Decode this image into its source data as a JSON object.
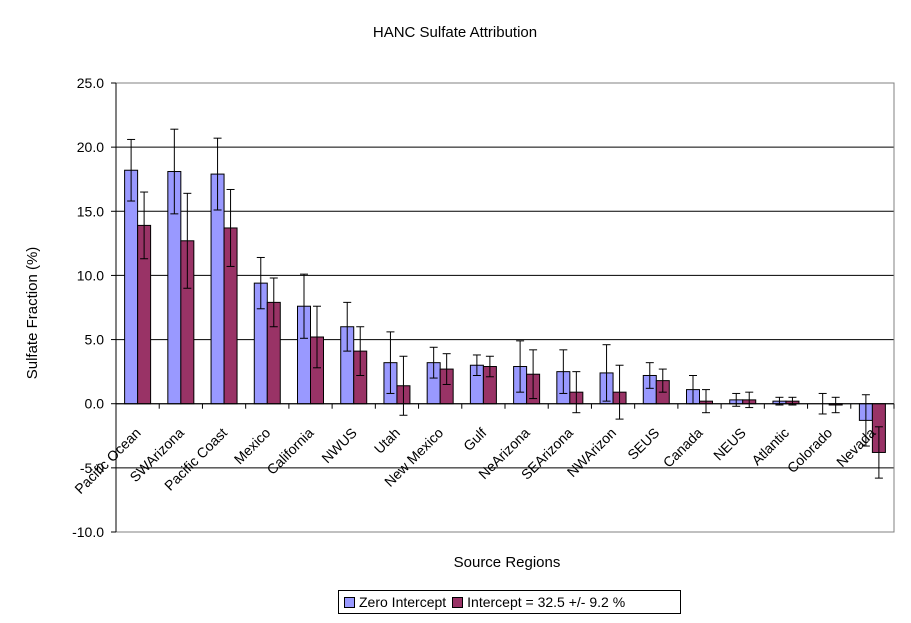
{
  "chart_data": {
    "type": "bar",
    "title": "HANC Sulfate Attribution",
    "xlabel": "Source Regions",
    "ylabel": "Sulfate Fraction (%)",
    "ylim": [
      -10,
      25
    ],
    "yticks": [
      "25.0",
      "20.0",
      "15.0",
      "10.0",
      "5.0",
      "0.0",
      "-5.0",
      "-10.0"
    ],
    "grid": true,
    "legend_position": "bottom",
    "categories": [
      "Pacific Ocean",
      "SWArizona",
      "Pacific Coast",
      "Mexico",
      "California",
      "NWUS",
      "Utah",
      "New Mexico",
      "Gulf",
      "NeArizona",
      "SEArizona",
      "NWArizon",
      "SEUS",
      "Canada",
      "NEUS",
      "Atlantic",
      "Colorado",
      "Nevada"
    ],
    "series": [
      {
        "name": "Zero Intercept",
        "color": "#9999ff",
        "values": [
          18.2,
          18.1,
          17.9,
          9.4,
          7.6,
          6.0,
          3.2,
          3.2,
          3.0,
          2.9,
          2.5,
          2.4,
          2.2,
          1.1,
          0.3,
          0.2,
          0.0,
          -1.3
        ],
        "errors": [
          2.4,
          3.3,
          2.8,
          2.0,
          2.5,
          1.9,
          2.4,
          1.2,
          0.8,
          2.0,
          1.7,
          2.2,
          1.0,
          1.1,
          0.5,
          0.3,
          0.8,
          2.0
        ]
      },
      {
        "name": "Intercept = 32.5 +/- 9.2 %",
        "color": "#993366",
        "values": [
          13.9,
          12.7,
          13.7,
          7.9,
          5.2,
          4.1,
          1.4,
          2.7,
          2.9,
          2.3,
          0.9,
          0.9,
          1.8,
          0.2,
          0.3,
          0.2,
          -0.1,
          -3.8
        ],
        "errors": [
          2.6,
          3.7,
          3.0,
          1.9,
          2.4,
          1.9,
          2.3,
          1.2,
          0.8,
          1.9,
          1.6,
          2.1,
          0.9,
          0.9,
          0.6,
          0.3,
          0.6,
          2.0
        ]
      }
    ]
  }
}
